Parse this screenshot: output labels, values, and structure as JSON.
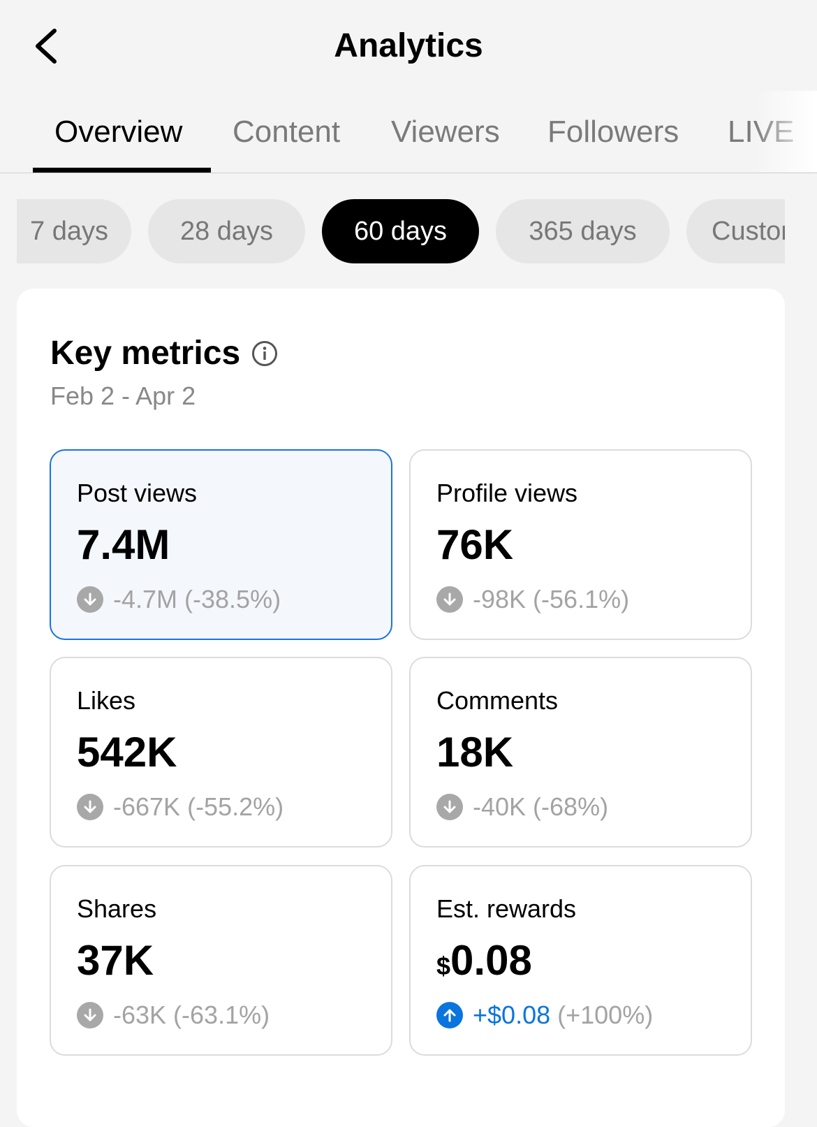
{
  "header": {
    "title": "Analytics",
    "back_icon": "chevron-left-icon"
  },
  "tabs": [
    {
      "label": "Overview",
      "active": true
    },
    {
      "label": "Content"
    },
    {
      "label": "Viewers"
    },
    {
      "label": "Followers"
    },
    {
      "label": "LIVE"
    }
  ],
  "ranges": [
    {
      "label": "7 days"
    },
    {
      "label": "28 days"
    },
    {
      "label": "60 days",
      "active": true
    },
    {
      "label": "365 days"
    },
    {
      "label": "Custom"
    }
  ],
  "key_metrics": {
    "title": "Key metrics",
    "info_icon": "info-icon",
    "date_range": "Feb 2 - Apr 2",
    "metrics": [
      {
        "label": "Post views",
        "value": "7.4M",
        "delta": "-4.7M",
        "pct": "(-38.5%)",
        "direction": "down",
        "selected": true
      },
      {
        "label": "Profile views",
        "value": "76K",
        "delta": "-98K",
        "pct": "(-56.1%)",
        "direction": "down"
      },
      {
        "label": "Likes",
        "value": "542K",
        "delta": "-667K",
        "pct": "(-55.2%)",
        "direction": "down"
      },
      {
        "label": "Comments",
        "value": "18K",
        "delta": "-40K",
        "pct": "(-68%)",
        "direction": "down"
      },
      {
        "label": "Shares",
        "value": "37K",
        "delta": "-63K",
        "pct": "(-63.1%)",
        "direction": "down"
      },
      {
        "label": "Est. rewards",
        "currency": "$",
        "value": "0.08",
        "delta": "+$0.08",
        "pct": "(+100%)",
        "direction": "up"
      }
    ]
  },
  "colors": {
    "accent": "#0b74de",
    "selected_border": "#1a73e0",
    "muted": "#a3a3a3"
  }
}
